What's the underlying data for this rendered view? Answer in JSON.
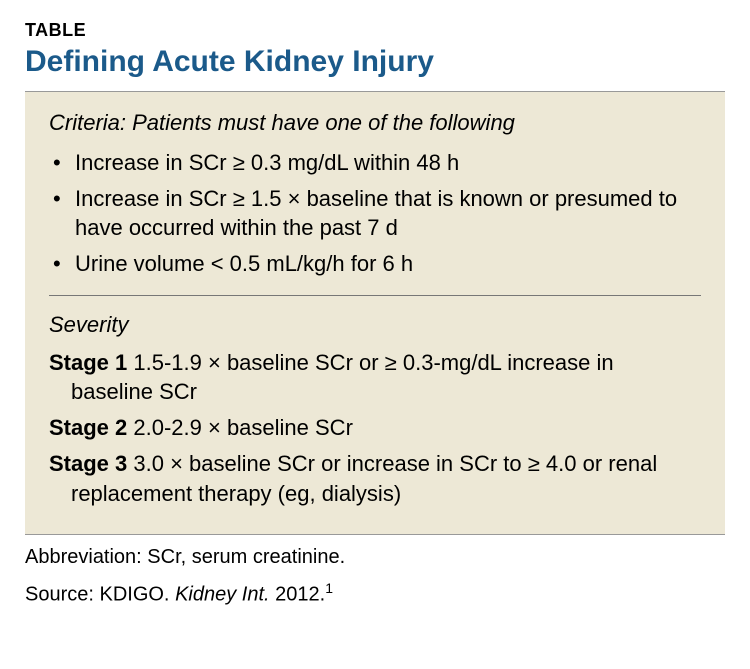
{
  "colors": {
    "title_color": "#1b5a8a",
    "box_background": "#ede8d6",
    "text_color": "#000000",
    "divider_color": "#777777",
    "border_color": "#999999"
  },
  "typography": {
    "font_family": "Arial, Helvetica, sans-serif",
    "label_fontsize": 18,
    "title_fontsize": 30,
    "body_fontsize": 22,
    "footnote_fontsize": 20
  },
  "table_label": "TABLE",
  "title": "Defining Acute Kidney Injury",
  "criteria": {
    "header": "Criteria: Patients must have one of the following",
    "items": [
      "Increase in SCr ≥ 0.3 mg/dL within 48 h",
      "Increase in SCr ≥ 1.5 × baseline that is known or presumed to have occurred within the past 7 d",
      "Urine volume < 0.5 mL/kg/h for 6 h"
    ]
  },
  "severity": {
    "header": "Severity",
    "stages": [
      {
        "label": "Stage 1",
        "text": " 1.5-1.9 × baseline SCr or ≥ 0.3-mg/dL increase in baseline SCr"
      },
      {
        "label": "Stage 2",
        "text": " 2.0-2.9 × baseline SCr"
      },
      {
        "label": "Stage 3",
        "text": " 3.0 × baseline SCr or increase in SCr to ≥ 4.0 or renal replacement therapy (eg, dialysis)"
      }
    ]
  },
  "footnotes": {
    "abbreviation": "Abbreviation: SCr, serum creatinine.",
    "source_prefix": "Source: KDIGO. ",
    "source_italic": "Kidney Int.",
    "source_suffix": " 2012.",
    "source_ref": "1"
  }
}
